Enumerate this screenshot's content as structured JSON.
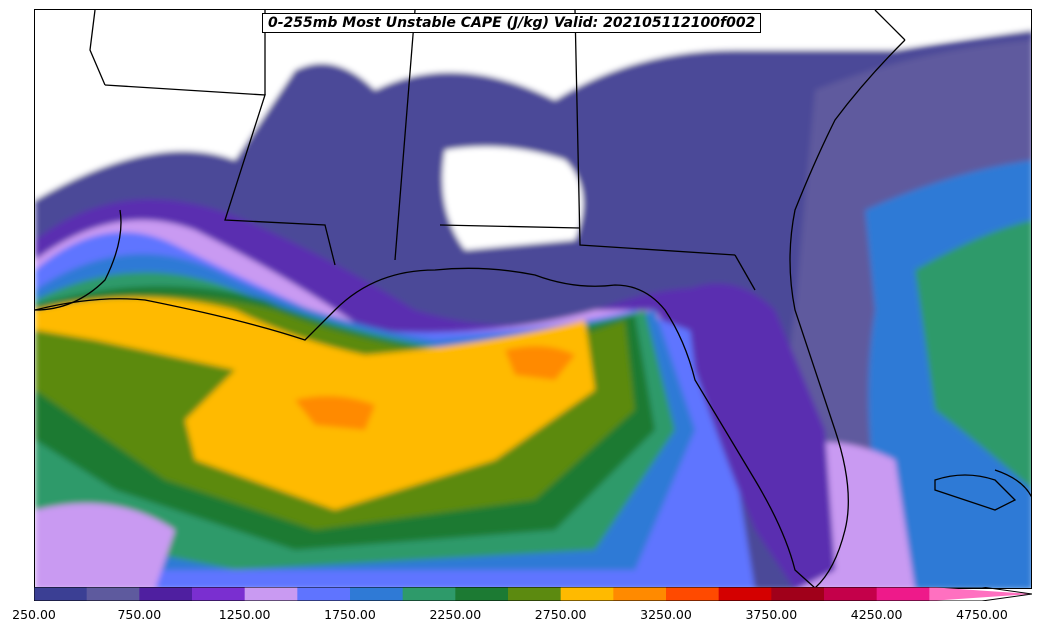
{
  "title": "0-255mb Most Unstable CAPE (J/kg) Valid: 202105112100f002",
  "colorbar": {
    "colors": [
      "#3b3f94",
      "#5e5a9e",
      "#4f1fa0",
      "#7a2fd0",
      "#c99af2",
      "#5f74ff",
      "#2f7ad6",
      "#2e9a6a",
      "#1c7a33",
      "#5c8a10",
      "#ffba00",
      "#ff8a00",
      "#ff4a00",
      "#d40000",
      "#a0001a",
      "#c4004a",
      "#ee1a8a",
      "#ff70c0"
    ],
    "tick_labels": [
      "250.00",
      "750.00",
      "1250.00",
      "1750.00",
      "2250.00",
      "2750.00",
      "3250.00",
      "3750.00",
      "4250.00",
      "4750.00"
    ],
    "range": [
      250,
      5000
    ],
    "step": 250
  },
  "map": {
    "field": "0-255mb Most Unstable CAPE",
    "units": "J/kg",
    "region": "Gulf of Mexico / Southeastern US",
    "background": "#ffffff"
  }
}
